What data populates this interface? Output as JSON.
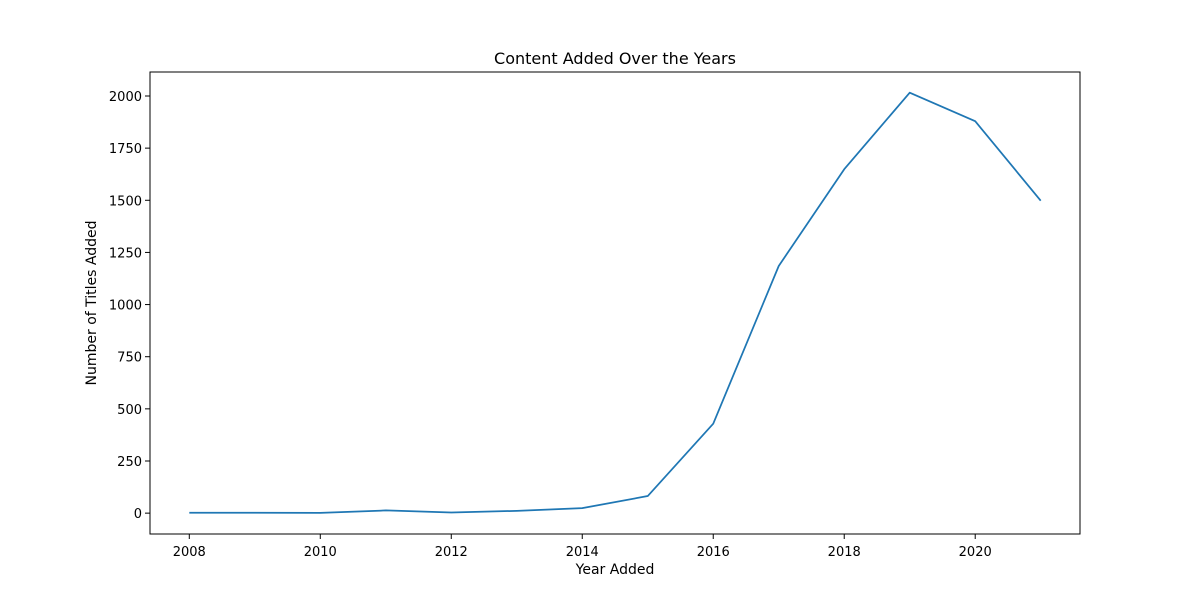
{
  "chart_data": {
    "type": "line",
    "title": "Content Added Over the Years",
    "xlabel": "Year Added",
    "ylabel": "Number of Titles Added",
    "xlim": [
      2007.4,
      2021.6
    ],
    "ylim": [
      -100,
      2115
    ],
    "x_ticks": [
      2008,
      2010,
      2012,
      2014,
      2016,
      2018,
      2020
    ],
    "x_tick_labels": [
      "2008",
      "2010",
      "2012",
      "2014",
      "2016",
      "2018",
      "2020"
    ],
    "y_ticks": [
      0,
      250,
      500,
      750,
      1000,
      1250,
      1500,
      1750,
      2000
    ],
    "y_tick_labels": [
      "0",
      "250",
      "500",
      "750",
      "1000",
      "1250",
      "1500",
      "1750",
      "2000"
    ],
    "grid": false,
    "series": [
      {
        "color": "#1f77b4",
        "x": [
          2008,
          2009,
          2010,
          2011,
          2012,
          2013,
          2014,
          2015,
          2016,
          2017,
          2018,
          2019,
          2020,
          2021
        ],
        "y": [
          2,
          2,
          1,
          13,
          3,
          11,
          24,
          82,
          429,
          1185,
          1649,
          2016,
          1879,
          1498
        ]
      }
    ]
  }
}
